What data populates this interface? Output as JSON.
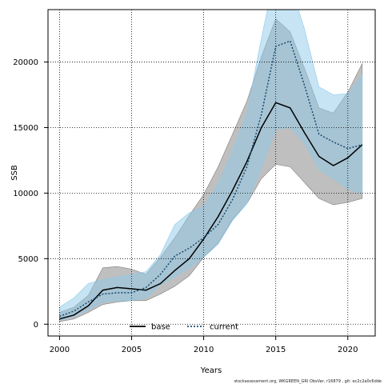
{
  "chart_data": {
    "type": "line",
    "xlabel": "Years",
    "ylabel": "SSB",
    "xlim": [
      1999.2,
      2021.9
    ],
    "ylim": [
      -900,
      24000
    ],
    "xticks": [
      2000,
      2005,
      2010,
      2015,
      2020
    ],
    "yticks": [
      0,
      5000,
      10000,
      15000,
      20000
    ],
    "grid": true,
    "legend_position": "bottom-center",
    "x": [
      2000,
      2001,
      2002,
      2003,
      2004,
      2005,
      2006,
      2007,
      2008,
      2009,
      2010,
      2011,
      2012,
      2013,
      2014,
      2015,
      2016,
      2017,
      2018,
      2019,
      2020,
      2021
    ],
    "series": [
      {
        "name": "base",
        "line_color": "#000000",
        "line_style": "solid",
        "band_color": "#808080",
        "values": [
          400,
          700,
          1400,
          2600,
          2800,
          2700,
          2600,
          3100,
          4100,
          5000,
          6500,
          8200,
          10200,
          12400,
          15000,
          16900,
          16500,
          14600,
          12800,
          12100,
          12700,
          13700
        ],
        "lower": [
          200,
          400,
          900,
          1500,
          1700,
          1800,
          1800,
          2300,
          2900,
          3700,
          5100,
          6200,
          8000,
          9200,
          11100,
          12200,
          12000,
          10800,
          9600,
          9100,
          9300,
          9600
        ],
        "upper": [
          900,
          1300,
          2200,
          4300,
          4400,
          4200,
          3800,
          5100,
          6600,
          8300,
          9900,
          12000,
          14500,
          17000,
          20400,
          23300,
          22300,
          19500,
          16500,
          16100,
          17700,
          19900
        ]
      },
      {
        "name": "current",
        "line_color": "#1a4a6e",
        "line_style": "dotted",
        "band_color": "#8ecae9",
        "values": [
          600,
          1000,
          1700,
          2300,
          2400,
          2400,
          2800,
          3800,
          5200,
          5800,
          6600,
          7600,
          9500,
          12000,
          16000,
          21200,
          21600,
          18200,
          14500,
          13900,
          13400,
          13700
        ],
        "lower": [
          300,
          600,
          1100,
          1700,
          1800,
          1800,
          2000,
          3000,
          3600,
          4300,
          5100,
          6100,
          7900,
          9200,
          11900,
          14900,
          15000,
          13800,
          11800,
          11100,
          10300,
          10000
        ],
        "upper": [
          1300,
          2000,
          3100,
          3400,
          3600,
          3800,
          4000,
          5300,
          7600,
          8500,
          9000,
          10700,
          13200,
          16100,
          21800,
          27000,
          26000,
          22500,
          18100,
          17500,
          17600,
          19000
        ]
      }
    ]
  },
  "credit": "stockassessment.org, WKGREEN_GRI ObsVar, r16879 , git: ec2c2a0c6dde"
}
